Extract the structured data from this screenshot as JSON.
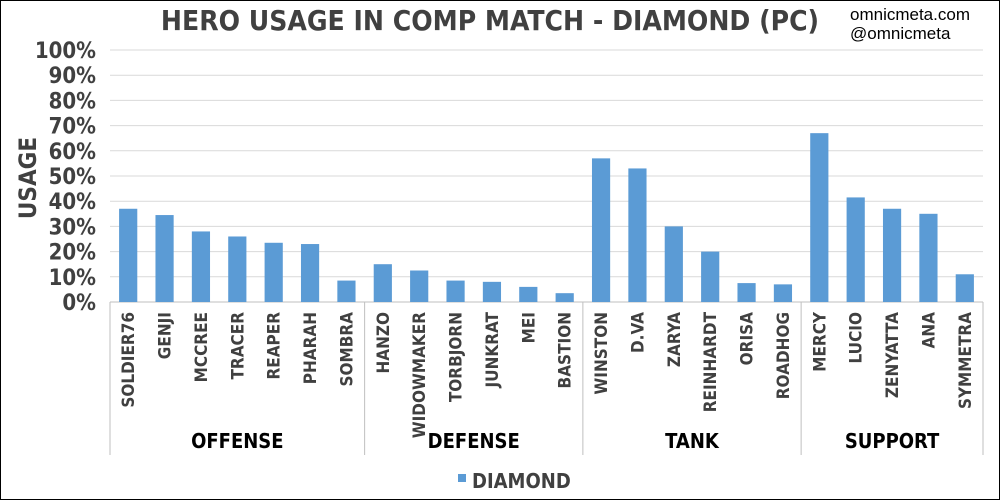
{
  "watermark": {
    "site": "omnicmeta.com",
    "handle": "@omnicmeta"
  },
  "chart_data": {
    "type": "bar",
    "title": "HERO USAGE IN COMP MATCH - DIAMOND (PC)",
    "ylabel": "USAGE",
    "xlabel": "",
    "ylim": [
      0,
      100
    ],
    "yticks": [
      "0%",
      "10%",
      "20%",
      "30%",
      "40%",
      "50%",
      "60%",
      "70%",
      "80%",
      "90%",
      "100%"
    ],
    "grid": true,
    "legend_position": "bottom",
    "bar_color": "#5b9bd5",
    "categories": [
      "SOLDIER76",
      "GENJI",
      "MCCREE",
      "TRACER",
      "REAPER",
      "PHARAH",
      "SOMBRA",
      "HANZO",
      "WIDOWMAKER",
      "TORBJORN",
      "JUNKRAT",
      "MEI",
      "BASTION",
      "WINSTON",
      "D.VA",
      "ZARYA",
      "REINHARDT",
      "ORISA",
      "ROADHOG",
      "MERCY",
      "LUCIO",
      "ZENYATTA",
      "ANA",
      "SYMMETRA"
    ],
    "groups": [
      {
        "label": "OFFENSE",
        "count": 7
      },
      {
        "label": "DEFENSE",
        "count": 6
      },
      {
        "label": "TANK",
        "count": 6
      },
      {
        "label": "SUPPORT",
        "count": 5
      }
    ],
    "series": [
      {
        "name": "DIAMOND",
        "values": [
          37,
          34.5,
          28,
          26,
          23.5,
          23,
          8.5,
          15,
          12.5,
          8.5,
          8,
          6,
          3.5,
          57,
          53,
          30,
          20,
          7.5,
          7,
          67,
          41.5,
          37,
          35,
          11
        ]
      }
    ]
  }
}
